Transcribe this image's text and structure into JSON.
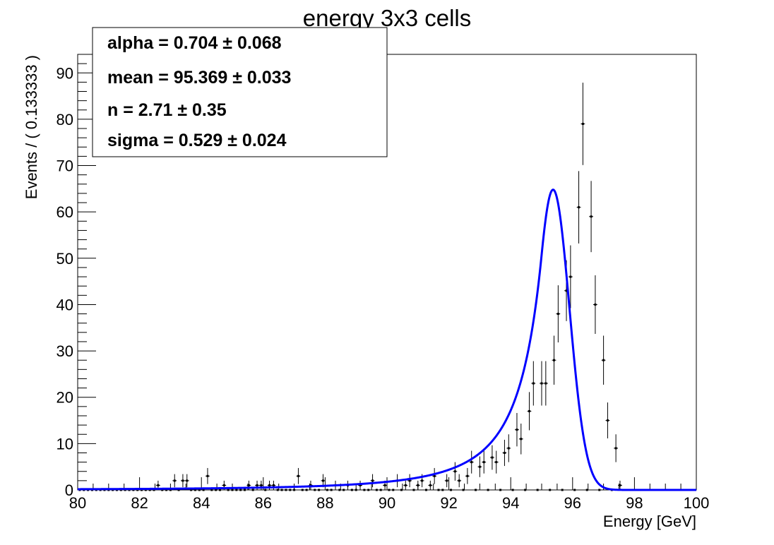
{
  "chart_data": {
    "type": "scatter",
    "title": "energy 3x3 cells",
    "xlabel": "Energy [GeV]",
    "ylabel": "Events / ( 0.133333 )",
    "xlim": [
      80,
      100
    ],
    "ylim": [
      0,
      94
    ],
    "x_ticks": [
      "80",
      "82",
      "84",
      "86",
      "88",
      "90",
      "92",
      "94",
      "96",
      "98",
      "100"
    ],
    "y_ticks": [
      "0",
      "10",
      "20",
      "30",
      "40",
      "50",
      "60",
      "70",
      "80",
      "90"
    ],
    "bin_width": 0.133333,
    "fit_params": {
      "alpha": 0.704,
      "mean": 95.369,
      "n": 2.71,
      "sigma": 0.529,
      "norm": 64.8
    },
    "stat_box": [
      "alpha =  0.704  ± 0.068",
      "mean =  95.369  ± 0.033",
      "n =  2.71 ± 0.35",
      "sigma =  0.529  ± 0.024"
    ],
    "series": [
      {
        "kind": "data",
        "points": [
          [
            82.47,
            1
          ],
          [
            83.13,
            2
          ],
          [
            83.27,
            2
          ],
          [
            83.4,
            2
          ],
          [
            84.07,
            3
          ],
          [
            84.73,
            1
          ],
          [
            85.53,
            1
          ],
          [
            85.67,
            1
          ],
          [
            85.8,
            1
          ],
          [
            85.93,
            1
          ],
          [
            86.07,
            1
          ],
          [
            86.2,
            1
          ],
          [
            86.33,
            1
          ],
          [
            87.13,
            3
          ],
          [
            87.4,
            1
          ],
          [
            87.8,
            2
          ],
          [
            88.2,
            1
          ],
          [
            88.33,
            1
          ],
          [
            88.6,
            2
          ],
          [
            88.73,
            1
          ],
          [
            89.13,
            1
          ],
          [
            89.4,
            2
          ],
          [
            89.8,
            1
          ],
          [
            90.2,
            2
          ],
          [
            90.47,
            1
          ],
          [
            90.6,
            2
          ],
          [
            90.87,
            1
          ],
          [
            91.0,
            2
          ],
          [
            91.27,
            1
          ],
          [
            91.4,
            2
          ],
          [
            91.53,
            3
          ],
          [
            91.8,
            2
          ],
          [
            91.93,
            2
          ],
          [
            92.07,
            4
          ],
          [
            92.2,
            1
          ],
          [
            92.33,
            2
          ],
          [
            92.47,
            3
          ],
          [
            92.6,
            7
          ],
          [
            92.73,
            6
          ],
          [
            92.87,
            5
          ],
          [
            93.0,
            4
          ],
          [
            93.13,
            6
          ],
          [
            93.27,
            7
          ],
          [
            93.4,
            4
          ],
          [
            93.53,
            6
          ],
          [
            93.67,
            8
          ],
          [
            93.8,
            8
          ],
          [
            93.93,
            9
          ],
          [
            94.07,
            13
          ],
          [
            94.2,
            6
          ],
          [
            94.33,
            11
          ],
          [
            94.47,
            17
          ],
          [
            94.6,
            14
          ],
          [
            94.73,
            23
          ],
          [
            94.87,
            23
          ],
          [
            95.0,
            18
          ],
          [
            95.13,
            23
          ],
          [
            95.27,
            28
          ],
          [
            95.4,
            34
          ],
          [
            95.53,
            38
          ],
          [
            95.67,
            43
          ],
          [
            95.8,
            49
          ],
          [
            95.93,
            46
          ],
          [
            96.07,
            61
          ],
          [
            96.2,
            62
          ],
          [
            96.33,
            79
          ],
          [
            96.47,
            59
          ],
          [
            96.6,
            47
          ],
          [
            96.73,
            40
          ],
          [
            96.87,
            28
          ],
          [
            97.0,
            19
          ],
          [
            97.13,
            15
          ],
          [
            97.27,
            9
          ],
          [
            97.4,
            2
          ],
          [
            97.53,
            1
          ]
        ]
      },
      {
        "kind": "fit",
        "name": "Crystal Ball fit"
      }
    ]
  }
}
